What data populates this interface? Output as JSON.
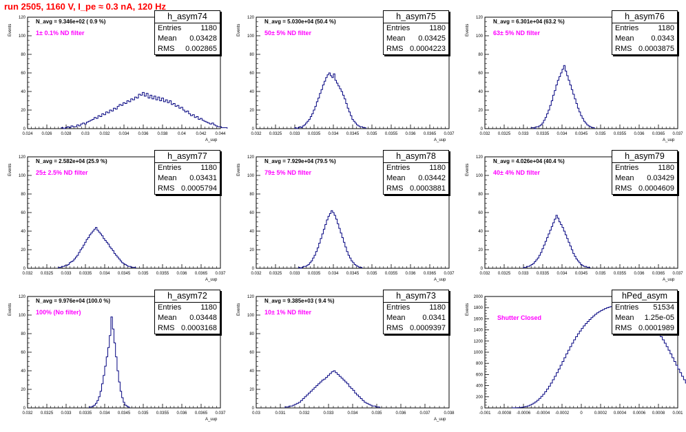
{
  "page": {
    "title": "run 2505,  1160 V, I_pe ≈ 0.3 nA, 120 Hz"
  },
  "panels": [
    {
      "hist_name": "h_asym74",
      "stats": {
        "entries_label": "Entries",
        "entries": "1180",
        "mean_label": "Mean",
        "mean": "0.03428",
        "rms_label": "RMS",
        "rms": "0.002865"
      },
      "n_avg_label": "N_avg = 9.346e+02 ( 0.9 %)",
      "filter_label": "1± 0.1% ND filter",
      "y_axis_label": "Events",
      "x_axis_label": "A_uup"
    },
    {
      "hist_name": "h_asym75",
      "stats": {
        "entries_label": "Entries",
        "entries": "1180",
        "mean_label": "Mean",
        "mean": "0.03425",
        "rms_label": "RMS",
        "rms": "0.0004223"
      },
      "n_avg_label": "N_avg = 5.030e+04 (50.4 %)",
      "filter_label": "50± 5% ND filter",
      "y_axis_label": "Events",
      "x_axis_label": "A_uup"
    },
    {
      "hist_name": "h_asym76",
      "stats": {
        "entries_label": "Entries",
        "entries": "1180",
        "mean_label": "Mean",
        "mean": "0.0343",
        "rms_label": "RMS",
        "rms": "0.0003875"
      },
      "n_avg_label": "N_avg = 6.301e+04 (63.2 %)",
      "filter_label": "63± 5% ND filter",
      "y_axis_label": "Events",
      "x_axis_label": "A_uup"
    },
    {
      "hist_name": "h_asym77",
      "stats": {
        "entries_label": "Entries",
        "entries": "1180",
        "mean_label": "Mean",
        "mean": "0.03431",
        "rms_label": "RMS",
        "rms": "0.0005794"
      },
      "n_avg_label": "N_avg = 2.582e+04 (25.9 %)",
      "filter_label": "25± 2.5% ND filter",
      "y_axis_label": "Events",
      "x_axis_label": "A_uup"
    },
    {
      "hist_name": "h_asym78",
      "stats": {
        "entries_label": "Entries",
        "entries": "1180",
        "mean_label": "Mean",
        "mean": "0.03442",
        "rms_label": "RMS",
        "rms": "0.0003881"
      },
      "n_avg_label": "N_avg = 7.929e+04 (79.5 %)",
      "filter_label": "79± 5% ND filter",
      "y_axis_label": "Events",
      "x_axis_label": "A_uup"
    },
    {
      "hist_name": "h_asym79",
      "stats": {
        "entries_label": "Entries",
        "entries": "1180",
        "mean_label": "Mean",
        "mean": "0.03429",
        "rms_label": "RMS",
        "rms": "0.0004609"
      },
      "n_avg_label": "N_avg = 4.026e+04 (40.4 %)",
      "filter_label": "40± 4% ND filter",
      "y_axis_label": "Events",
      "x_axis_label": "A_uup"
    },
    {
      "hist_name": "h_asym72",
      "stats": {
        "entries_label": "Entries",
        "entries": "1180",
        "mean_label": "Mean",
        "mean": "0.03448",
        "rms_label": "RMS",
        "rms": "0.0003168"
      },
      "n_avg_label": "N_avg = 9.976e+04 (100.0 %)",
      "filter_label": "100% (No filter)",
      "y_axis_label": "Events",
      "x_axis_label": "A_uup"
    },
    {
      "hist_name": "h_asym73",
      "stats": {
        "entries_label": "Entries",
        "entries": "1180",
        "mean_label": "Mean",
        "mean": "0.0341",
        "rms_label": "RMS",
        "rms": "0.0009397"
      },
      "n_avg_label": "N_avg = 9.385e+03 ( 9.4 %)",
      "filter_label": "10± 1% ND filter",
      "y_axis_label": "Events",
      "x_axis_label": "A_uup"
    },
    {
      "hist_name": "hPed_asym",
      "stats": {
        "entries_label": "Entries",
        "entries": "51534",
        "mean_label": "Mean",
        "mean": "1.25e-05",
        "rms_label": "RMS",
        "rms": "0.0001989"
      },
      "n_avg_label": "",
      "filter_label": "Shutter Closed",
      "y_axis_label": "Events",
      "x_axis_label": ""
    }
  ],
  "chart_data": [
    {
      "type": "histogram",
      "name": "h_asym74",
      "line_color": "#00007f",
      "xlim": [
        0.024,
        0.044
      ],
      "ylim": [
        0,
        120
      ],
      "x_ticks": [
        "0.024",
        "0.026",
        "0.028",
        "0.03",
        "0.032",
        "0.034",
        "0.036",
        "0.038",
        "0.04",
        "0.042",
        "0.044"
      ],
      "y_ticks": [
        "0",
        "20",
        "40",
        "60",
        "80",
        "100",
        "120"
      ],
      "bins": {
        "start": 0.0275,
        "width": 0.0002,
        "counts": [
          1,
          0,
          1,
          2,
          1,
          3,
          2,
          2,
          4,
          3,
          5,
          6,
          5,
          7,
          8,
          9,
          10,
          12,
          11,
          14,
          13,
          16,
          15,
          18,
          17,
          20,
          19,
          22,
          21,
          24,
          26,
          25,
          28,
          27,
          30,
          29,
          32,
          31,
          34,
          33,
          37,
          36,
          39,
          35,
          38,
          33,
          36,
          32,
          35,
          31,
          34,
          30,
          33,
          29,
          31,
          28,
          30,
          26,
          27,
          24,
          25,
          22,
          23,
          20,
          18,
          19,
          16,
          14,
          15,
          12,
          13,
          10,
          11,
          9,
          8,
          7,
          6,
          5,
          6,
          4,
          3,
          2,
          2,
          1,
          1,
          1
        ]
      }
    },
    {
      "type": "histogram",
      "name": "h_asym75",
      "line_color": "#00007f",
      "xlim": [
        0.032,
        0.037
      ],
      "ylim": [
        0,
        120
      ],
      "x_ticks": [
        "0.032",
        "0.0325",
        "0.033",
        "0.0335",
        "0.034",
        "0.0345",
        "0.035",
        "0.0355",
        "0.036",
        "0.0365",
        "0.037"
      ],
      "y_ticks": [
        "0",
        "20",
        "40",
        "60",
        "80",
        "100",
        "120"
      ],
      "bins": {
        "start": 0.033,
        "width": 4e-05,
        "counts": [
          1,
          0,
          1,
          2,
          1,
          3,
          4,
          6,
          8,
          10,
          13,
          16,
          20,
          24,
          29,
          33,
          38,
          42,
          47,
          51,
          55,
          58,
          60,
          57,
          55,
          59,
          52,
          49,
          46,
          43,
          40,
          36,
          32,
          27,
          22,
          18,
          14,
          10,
          8,
          6,
          4,
          3,
          2,
          2,
          1,
          1
        ]
      }
    },
    {
      "type": "histogram",
      "name": "h_asym76",
      "line_color": "#00007f",
      "xlim": [
        0.032,
        0.037
      ],
      "ylim": [
        0,
        120
      ],
      "x_ticks": [
        "0.032",
        "0.0325",
        "0.033",
        "0.0335",
        "0.034",
        "0.0345",
        "0.035",
        "0.0355",
        "0.036",
        "0.0365",
        "0.037"
      ],
      "y_ticks": [
        "0",
        "20",
        "40",
        "60",
        "80",
        "100",
        "120"
      ],
      "bins": {
        "start": 0.0332,
        "width": 4e-05,
        "counts": [
          1,
          1,
          0,
          2,
          2,
          3,
          4,
          6,
          9,
          12,
          16,
          20,
          25,
          30,
          36,
          41,
          47,
          52,
          56,
          60,
          64,
          68,
          62,
          57,
          52,
          47,
          42,
          37,
          32,
          27,
          22,
          18,
          14,
          11,
          8,
          6,
          4,
          3,
          2,
          1,
          1
        ]
      }
    },
    {
      "type": "histogram",
      "name": "h_asym77",
      "line_color": "#00007f",
      "xlim": [
        0.032,
        0.037
      ],
      "ylim": [
        0,
        120
      ],
      "x_ticks": [
        "0.032",
        "0.0325",
        "0.033",
        "0.0335",
        "0.034",
        "0.0345",
        "0.035",
        "0.0355",
        "0.036",
        "0.0365",
        "0.037"
      ],
      "y_ticks": [
        "0",
        "20",
        "40",
        "60",
        "80",
        "100",
        "120"
      ],
      "bins": {
        "start": 0.0328,
        "width": 4e-05,
        "counts": [
          1,
          1,
          2,
          2,
          3,
          3,
          4,
          6,
          7,
          8,
          10,
          12,
          14,
          17,
          20,
          22,
          25,
          28,
          31,
          33,
          36,
          38,
          40,
          42,
          44,
          41,
          39,
          37,
          35,
          32,
          30,
          28,
          26,
          23,
          21,
          19,
          16,
          14,
          12,
          10,
          8,
          6,
          5,
          4,
          3,
          2,
          2,
          1,
          1,
          1
        ]
      }
    },
    {
      "type": "histogram",
      "name": "h_asym78",
      "line_color": "#00007f",
      "xlim": [
        0.032,
        0.037
      ],
      "ylim": [
        0,
        120
      ],
      "x_ticks": [
        "0.032",
        "0.0325",
        "0.033",
        "0.0335",
        "0.034",
        "0.0345",
        "0.035",
        "0.0355",
        "0.036",
        "0.0365",
        "0.037"
      ],
      "y_ticks": [
        "0",
        "20",
        "40",
        "60",
        "80",
        "100",
        "120"
      ],
      "bins": {
        "start": 0.0331,
        "width": 4e-05,
        "counts": [
          1,
          0,
          1,
          2,
          2,
          3,
          4,
          6,
          8,
          11,
          14,
          18,
          22,
          27,
          32,
          37,
          42,
          47,
          52,
          56,
          59,
          62,
          60,
          57,
          53,
          48,
          43,
          38,
          33,
          28,
          23,
          18,
          14,
          11,
          8,
          6,
          4,
          3,
          2,
          1,
          1
        ]
      }
    },
    {
      "type": "histogram",
      "name": "h_asym79",
      "line_color": "#00007f",
      "xlim": [
        0.032,
        0.037
      ],
      "ylim": [
        0,
        120
      ],
      "x_ticks": [
        "0.032",
        "0.0325",
        "0.033",
        "0.0335",
        "0.034",
        "0.0345",
        "0.035",
        "0.0355",
        "0.036",
        "0.0365",
        "0.037"
      ],
      "y_ticks": [
        "0",
        "20",
        "40",
        "60",
        "80",
        "100",
        "120"
      ],
      "bins": {
        "start": 0.033,
        "width": 4e-05,
        "counts": [
          1,
          1,
          2,
          2,
          3,
          4,
          5,
          7,
          9,
          11,
          14,
          17,
          21,
          25,
          29,
          33,
          37,
          41,
          45,
          49,
          53,
          57,
          54,
          50,
          47,
          44,
          40,
          36,
          32,
          28,
          24,
          20,
          16,
          13,
          10,
          8,
          6,
          4,
          3,
          2,
          2,
          1,
          1
        ]
      }
    },
    {
      "type": "histogram",
      "name": "h_asym72",
      "line_color": "#00007f",
      "xlim": [
        0.032,
        0.037
      ],
      "ylim": [
        0,
        120
      ],
      "x_ticks": [
        "0.032",
        "0.0325",
        "0.033",
        "0.0335",
        "0.034",
        "0.0345",
        "0.035",
        "0.0355",
        "0.036",
        "0.0365",
        "0.037"
      ],
      "y_ticks": [
        "0",
        "20",
        "40",
        "60",
        "80",
        "100",
        "120"
      ],
      "bins": {
        "start": 0.0336,
        "width": 4e-05,
        "counts": [
          1,
          1,
          2,
          3,
          5,
          8,
          12,
          18,
          26,
          35,
          45,
          55,
          65,
          78,
          98,
          85,
          70,
          55,
          40,
          28,
          18,
          11,
          6,
          3,
          2,
          1
        ]
      }
    },
    {
      "type": "histogram",
      "name": "h_asym73",
      "line_color": "#00007f",
      "xlim": [
        0.03,
        0.038
      ],
      "ylim": [
        0,
        120
      ],
      "x_ticks": [
        "0.03",
        "0.031",
        "0.032",
        "0.033",
        "0.034",
        "0.035",
        "0.036",
        "0.037",
        "0.038"
      ],
      "y_ticks": [
        "0",
        "20",
        "40",
        "60",
        "80",
        "100",
        "120"
      ],
      "bins": {
        "start": 0.0312,
        "width": 8e-05,
        "counts": [
          1,
          1,
          2,
          2,
          3,
          4,
          5,
          6,
          8,
          10,
          12,
          14,
          16,
          18,
          20,
          22,
          24,
          26,
          28,
          30,
          31,
          33,
          35,
          37,
          39,
          40,
          38,
          36,
          34,
          32,
          30,
          28,
          26,
          23,
          21,
          19,
          16,
          14,
          12,
          10,
          8,
          6,
          5,
          4,
          3,
          2,
          2,
          1,
          1
        ]
      }
    },
    {
      "type": "histogram",
      "name": "hPed_asym",
      "line_color": "#00007f",
      "xlim": [
        -0.001,
        0.001
      ],
      "ylim": [
        0,
        2000
      ],
      "x_ticks": [
        "-0.001",
        "-0.0008",
        "-0.0006",
        "-0.0004",
        "-0.0002",
        "0",
        "0.0002",
        "0.0004",
        "0.0006",
        "0.0008",
        "0.001"
      ],
      "y_ticks": [
        "0",
        "200",
        "400",
        "600",
        "800",
        "1000",
        "1200",
        "1400",
        "1600",
        "1800",
        "2000"
      ],
      "bins": {
        "start": -0.00072,
        "width": 2e-05,
        "counts": [
          1,
          2,
          3,
          5,
          8,
          12,
          18,
          26,
          36,
          50,
          66,
          86,
          110,
          138,
          170,
          206,
          246,
          290,
          338,
          390,
          446,
          506,
          568,
          632,
          698,
          766,
          834,
          902,
          970,
          1036,
          1100,
          1162,
          1222,
          1278,
          1330,
          1380,
          1428,
          1472,
          1512,
          1550,
          1586,
          1620,
          1652,
          1680,
          1706,
          1728,
          1748,
          1766,
          1782,
          1796,
          1808,
          1818,
          1826,
          1832,
          1836,
          1838,
          1836,
          1832,
          1826,
          1818,
          1808,
          1796,
          1782,
          1766,
          1748,
          1728,
          1706,
          1680,
          1652,
          1620,
          1586,
          1550,
          1512,
          1472,
          1428,
          1380,
          1330,
          1278,
          1222,
          1162,
          1100,
          1036,
          970,
          902,
          834,
          766,
          698,
          632,
          568,
          506,
          446,
          390,
          338,
          290,
          246,
          206,
          170,
          138,
          110,
          86,
          66,
          50,
          36,
          26,
          18,
          12,
          8,
          5,
          3,
          2,
          1,
          1
        ]
      }
    }
  ]
}
